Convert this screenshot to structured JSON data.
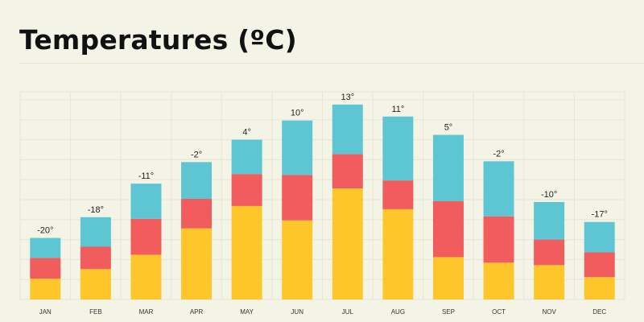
{
  "title": "Temperatures (ºC)",
  "chart_data": {
    "type": "bar",
    "stacked": true,
    "title": "Temperatures (ºC)",
    "categories": [
      "JAN",
      "FEB",
      "MAR",
      "APR",
      "MAY",
      "JUN",
      "JUL",
      "AUG",
      "SEP",
      "OCT",
      "NOV",
      "DEC"
    ],
    "value_labels": [
      "-20°",
      "-18°",
      "-11°",
      "-2°",
      "4°",
      "10°",
      "13°",
      "11°",
      "5°",
      "-2°",
      "-10°",
      "-17°"
    ],
    "series": [
      {
        "color": "#ffc62b",
        "values": [
          26,
          38,
          56,
          89,
          117,
          99,
          139,
          113,
          53,
          46,
          43,
          28
        ]
      },
      {
        "color": "#f15d5d",
        "values": [
          26,
          28,
          45,
          37,
          40,
          57,
          43,
          36,
          70,
          58,
          32,
          31
        ]
      },
      {
        "color": "#5ec6d2",
        "values": [
          25,
          37,
          44,
          46,
          43,
          68,
          62,
          80,
          83,
          69,
          47,
          38
        ]
      }
    ],
    "ylim": [
      0,
      260
    ],
    "grid": true,
    "legend": "none"
  }
}
